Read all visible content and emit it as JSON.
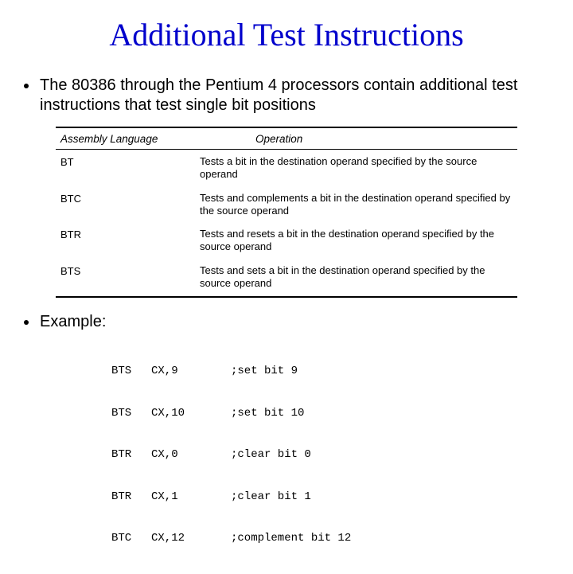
{
  "title": "Additional Test Instructions",
  "title_color": "#0000cc",
  "title_font": "Comic Sans MS",
  "title_fontsize": 40,
  "body_font": "Arial",
  "body_fontsize": 20,
  "bullets": [
    "The 80386 through the Pentium 4 processors contain additional test instructions that test single bit positions",
    "Example:"
  ],
  "table": {
    "headers": {
      "lang": "Assembly Language",
      "op": "Operation"
    },
    "rows": [
      {
        "mnemonic": "BT",
        "desc": "Tests a bit in the destination operand specified by the source operand"
      },
      {
        "mnemonic": "BTC",
        "desc": "Tests and complements a bit in the destination operand specified by the source operand"
      },
      {
        "mnemonic": "BTR",
        "desc": "Tests and resets a bit in the destination operand specified by the source operand"
      },
      {
        "mnemonic": "BTS",
        "desc": "Tests and sets a bit in the destination operand specified by the source operand"
      }
    ],
    "header_fontsize": 13.5,
    "cell_fontsize": 13,
    "border_color": "#000000"
  },
  "example": {
    "font": "Courier New",
    "fontsize": 14,
    "lines": [
      {
        "instr": "BTS",
        "args": "CX,9",
        "comment": ";set bit 9"
      },
      {
        "instr": "BTS",
        "args": "CX,10",
        "comment": ";set bit 10"
      },
      {
        "instr": "BTR",
        "args": "CX,0",
        "comment": ";clear bit 0"
      },
      {
        "instr": "BTR",
        "args": "CX,1",
        "comment": ";clear bit 1"
      },
      {
        "instr": "BTC",
        "args": "CX,12",
        "comment": ";complement bit 12"
      }
    ]
  },
  "background_color": "#ffffff"
}
